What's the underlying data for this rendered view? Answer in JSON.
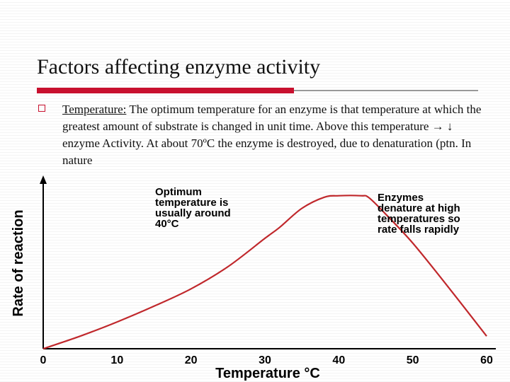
{
  "slide": {
    "title": "Factors affecting enzyme activity",
    "bullet_term": "Temperature:",
    "bullet_text": " The  optimum temperature for an enzyme is that temperature at which the greatest amount of substrate is changed in unit time. Above this temperature → ↓ enzyme Activity. At about 70ºC the enzyme is destroyed, due to denaturation (ptn. In nature"
  },
  "colors": {
    "accent": "#c8102e",
    "curve": "#c0282c"
  },
  "chart_data": {
    "type": "line",
    "title": "",
    "xlabel": "Temperature °C",
    "ylabel": "Rate of reaction",
    "xlim": [
      0,
      60
    ],
    "ylim": [
      0,
      100
    ],
    "x_ticks": [
      "0",
      "10",
      "20",
      "30",
      "40",
      "50",
      "60"
    ],
    "grid": false,
    "series": [
      {
        "x": [
          0,
          5,
          10,
          15,
          20,
          25,
          30,
          32,
          35,
          38,
          40,
          43,
          44,
          46,
          50,
          55,
          60
        ],
        "y": [
          0,
          8,
          17,
          27,
          38,
          52,
          70,
          77,
          89,
          96,
          97,
          97,
          96,
          87,
          67,
          38,
          8
        ]
      }
    ],
    "annotations": [
      {
        "lines": [
          "Optimum",
          "temperature is",
          "usually around",
          "40°C"
        ]
      },
      {
        "lines": [
          "Enzymes",
          "denature at high",
          "temperatures so",
          "rate falls rapidly"
        ]
      }
    ]
  }
}
